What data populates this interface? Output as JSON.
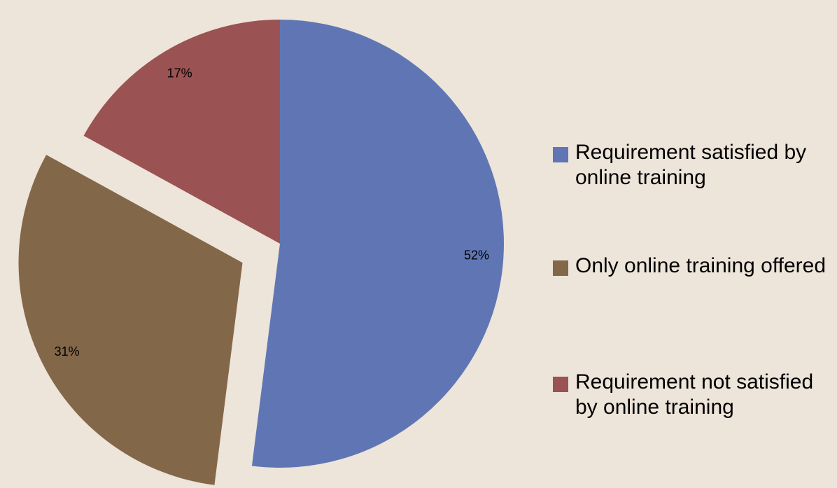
{
  "chart_data": {
    "type": "pie",
    "categories": [
      "Requirement satisfied by online training",
      "Only online training offered",
      "Requirement not satisfied by online training"
    ],
    "values": [
      52,
      31,
      17
    ],
    "value_labels": [
      "52%",
      "31%",
      "17%"
    ],
    "colors": [
      "#6076b4",
      "#836749",
      "#9b5253"
    ],
    "exploded": [
      false,
      true,
      false
    ],
    "legend": "right"
  }
}
